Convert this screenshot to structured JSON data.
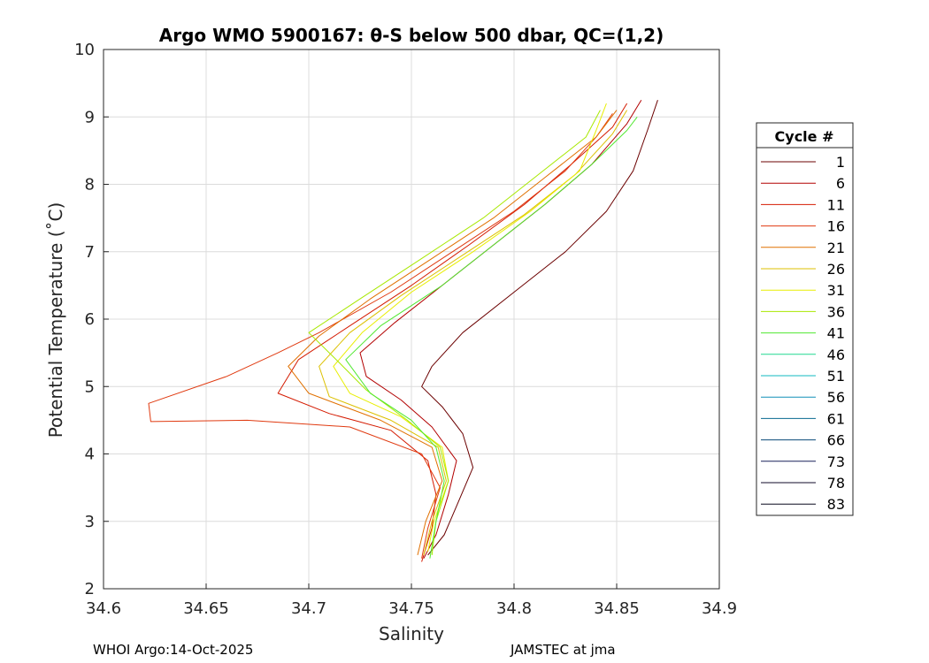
{
  "chart_data": {
    "type": "line",
    "title": "Argo WMO 5900167: θ-S below 500 dbar,  QC=(1,2)",
    "xlabel": "Salinity",
    "ylabel": "Potential Temperature (˚C)",
    "xlim": [
      34.6,
      34.9
    ],
    "ylim": [
      2,
      10
    ],
    "xticks": [
      "34.6",
      "34.65",
      "34.7",
      "34.75",
      "34.8",
      "34.85",
      "34.9"
    ],
    "xtick_values": [
      34.6,
      34.65,
      34.7,
      34.75,
      34.8,
      34.85,
      34.9
    ],
    "yticks": [
      "2",
      "3",
      "4",
      "5",
      "6",
      "7",
      "8",
      "9",
      "10"
    ],
    "ytick_values": [
      2,
      3,
      4,
      5,
      6,
      7,
      8,
      9,
      10
    ],
    "grid": true,
    "legend_position": "right",
    "legend": {
      "title": "Cycle #",
      "entries": [
        {
          "label": "1",
          "color": "#6b0000"
        },
        {
          "label": "6",
          "color": "#b20000"
        },
        {
          "label": "11",
          "color": "#d41a00"
        },
        {
          "label": "16",
          "color": "#e03a10"
        },
        {
          "label": "21",
          "color": "#e07000"
        },
        {
          "label": "26",
          "color": "#dcc000"
        },
        {
          "label": "31",
          "color": "#e8ee00"
        },
        {
          "label": "36",
          "color": "#a8e800"
        },
        {
          "label": "41",
          "color": "#50e830"
        },
        {
          "label": "46",
          "color": "#20d890"
        },
        {
          "label": "51",
          "color": "#10b8c0"
        },
        {
          "label": "56",
          "color": "#1090b8"
        },
        {
          "label": "61",
          "color": "#086890"
        },
        {
          "label": "66",
          "color": "#084878"
        },
        {
          "label": "73",
          "color": "#18205a"
        },
        {
          "label": "78",
          "color": "#100a2a"
        },
        {
          "label": "83",
          "color": "#08081e"
        }
      ]
    },
    "series": [
      {
        "name": "1",
        "color": "#6b0000",
        "points": [
          [
            34.758,
            2.5
          ],
          [
            34.766,
            2.8
          ],
          [
            34.773,
            3.3
          ],
          [
            34.78,
            3.8
          ],
          [
            34.775,
            4.3
          ],
          [
            34.765,
            4.7
          ],
          [
            34.755,
            5.0
          ],
          [
            34.76,
            5.3
          ],
          [
            34.775,
            5.8
          ],
          [
            34.8,
            6.4
          ],
          [
            34.825,
            7.0
          ],
          [
            34.845,
            7.6
          ],
          [
            34.858,
            8.2
          ],
          [
            34.865,
            8.8
          ],
          [
            34.87,
            9.25
          ]
        ]
      },
      {
        "name": "6",
        "color": "#b20000",
        "points": [
          [
            34.756,
            2.45
          ],
          [
            34.762,
            2.8
          ],
          [
            34.768,
            3.4
          ],
          [
            34.772,
            3.9
          ],
          [
            34.76,
            4.4
          ],
          [
            34.745,
            4.8
          ],
          [
            34.728,
            5.15
          ],
          [
            34.725,
            5.5
          ],
          [
            34.742,
            5.95
          ],
          [
            34.765,
            6.5
          ],
          [
            34.79,
            7.1
          ],
          [
            34.815,
            7.7
          ],
          [
            34.838,
            8.3
          ],
          [
            34.855,
            8.9
          ],
          [
            34.862,
            9.25
          ]
        ]
      },
      {
        "name": "11",
        "color": "#d41a00",
        "points": [
          [
            34.755,
            2.4
          ],
          [
            34.76,
            2.9
          ],
          [
            34.762,
            3.4
          ],
          [
            34.758,
            3.9
          ],
          [
            34.74,
            4.35
          ],
          [
            34.71,
            4.6
          ],
          [
            34.685,
            4.9
          ],
          [
            34.695,
            5.4
          ],
          [
            34.72,
            5.9
          ],
          [
            34.75,
            6.5
          ],
          [
            34.778,
            7.1
          ],
          [
            34.805,
            7.7
          ],
          [
            34.828,
            8.3
          ],
          [
            34.848,
            8.85
          ],
          [
            34.855,
            9.2
          ]
        ]
      },
      {
        "name": "16",
        "color": "#e03a10",
        "points": [
          [
            34.755,
            2.45
          ],
          [
            34.758,
            2.9
          ],
          [
            34.764,
            3.5
          ],
          [
            34.755,
            4.0
          ],
          [
            34.72,
            4.4
          ],
          [
            34.67,
            4.5
          ],
          [
            34.623,
            4.48
          ],
          [
            34.622,
            4.75
          ],
          [
            34.66,
            5.15
          ],
          [
            34.685,
            5.5
          ],
          [
            34.705,
            5.8
          ],
          [
            34.74,
            6.4
          ],
          [
            34.77,
            7.0
          ],
          [
            34.8,
            7.6
          ],
          [
            34.825,
            8.2
          ],
          [
            34.84,
            8.7
          ],
          [
            34.848,
            9.05
          ]
        ]
      },
      {
        "name": "21",
        "color": "#e07000",
        "points": [
          [
            34.753,
            2.5
          ],
          [
            34.757,
            3.0
          ],
          [
            34.765,
            3.6
          ],
          [
            34.76,
            4.1
          ],
          [
            34.735,
            4.5
          ],
          [
            34.7,
            4.9
          ],
          [
            34.69,
            5.3
          ],
          [
            34.705,
            5.75
          ],
          [
            34.73,
            6.3
          ],
          [
            34.76,
            6.9
          ],
          [
            34.79,
            7.5
          ],
          [
            34.815,
            8.1
          ],
          [
            34.84,
            8.7
          ],
          [
            34.85,
            9.1
          ]
        ]
      },
      {
        "name": "26",
        "color": "#dcc000",
        "points": [
          [
            34.756,
            2.5
          ],
          [
            34.76,
            3.0
          ],
          [
            34.767,
            3.6
          ],
          [
            34.763,
            4.1
          ],
          [
            34.74,
            4.5
          ],
          [
            34.71,
            4.85
          ],
          [
            34.705,
            5.3
          ],
          [
            34.72,
            5.8
          ],
          [
            34.745,
            6.35
          ],
          [
            34.775,
            6.95
          ],
          [
            34.805,
            7.55
          ],
          [
            34.83,
            8.15
          ],
          [
            34.848,
            8.75
          ],
          [
            34.855,
            9.1
          ]
        ]
      },
      {
        "name": "31",
        "color": "#e8ee00",
        "points": [
          [
            34.758,
            2.55
          ],
          [
            34.761,
            3.0
          ],
          [
            34.768,
            3.6
          ],
          [
            34.765,
            4.1
          ],
          [
            34.745,
            4.55
          ],
          [
            34.72,
            4.9
          ],
          [
            34.712,
            5.3
          ],
          [
            34.726,
            5.8
          ],
          [
            34.75,
            6.4
          ],
          [
            34.78,
            7.0
          ],
          [
            34.808,
            7.6
          ],
          [
            34.832,
            8.2
          ],
          [
            34.84,
            8.8
          ],
          [
            34.845,
            9.2
          ]
        ]
      },
      {
        "name": "36",
        "color": "#a8e800",
        "points": [
          [
            34.76,
            2.5
          ],
          [
            34.762,
            3.0
          ],
          [
            34.768,
            3.6
          ],
          [
            34.764,
            4.1
          ],
          [
            34.748,
            4.5
          ],
          [
            34.728,
            4.95
          ],
          [
            34.715,
            5.35
          ],
          [
            34.7,
            5.8
          ],
          [
            34.725,
            6.3
          ],
          [
            34.755,
            6.9
          ],
          [
            34.785,
            7.5
          ],
          [
            34.81,
            8.1
          ],
          [
            34.835,
            8.7
          ],
          [
            34.842,
            9.1
          ]
        ]
      },
      {
        "name": "41",
        "color": "#50e830",
        "points": [
          [
            34.759,
            2.45
          ],
          [
            34.762,
            3.0
          ],
          [
            34.766,
            3.6
          ],
          [
            34.762,
            4.1
          ],
          [
            34.75,
            4.5
          ],
          [
            34.73,
            4.9
          ],
          [
            34.718,
            5.4
          ],
          [
            34.735,
            5.9
          ],
          [
            34.765,
            6.5
          ],
          [
            34.79,
            7.1
          ],
          [
            34.815,
            7.7
          ],
          [
            34.838,
            8.3
          ],
          [
            34.855,
            8.8
          ],
          [
            34.86,
            9.0
          ]
        ]
      }
    ]
  },
  "footer": {
    "left": "WHOI Argo:14-Oct-2025",
    "right": "JAMSTEC at jma"
  }
}
